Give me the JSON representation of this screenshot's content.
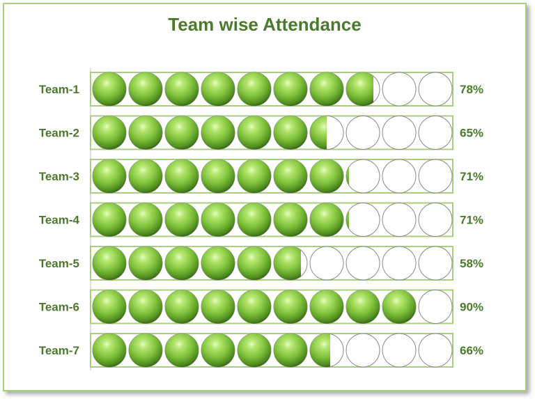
{
  "chart_data": {
    "type": "bar",
    "title": "Team wise Attendance",
    "categories": [
      "Team-1",
      "Team-2",
      "Team-3",
      "Team-4",
      "Team-5",
      "Team-6",
      "Team-7"
    ],
    "values": [
      78,
      65,
      71,
      71,
      58,
      90,
      66
    ],
    "value_labels": [
      "78%",
      "65%",
      "71%",
      "71%",
      "58%",
      "90%",
      "66%"
    ],
    "max": 100,
    "units_per_circle": 10,
    "grid": false,
    "colors": {
      "fill": "#7fc13a",
      "fill_dark": "#3f7a16",
      "fill_light": "#d9f5a8",
      "border": "#a9cf7d",
      "text": "#4b7a2c",
      "circle_outline": "#8a8a8a"
    }
  }
}
